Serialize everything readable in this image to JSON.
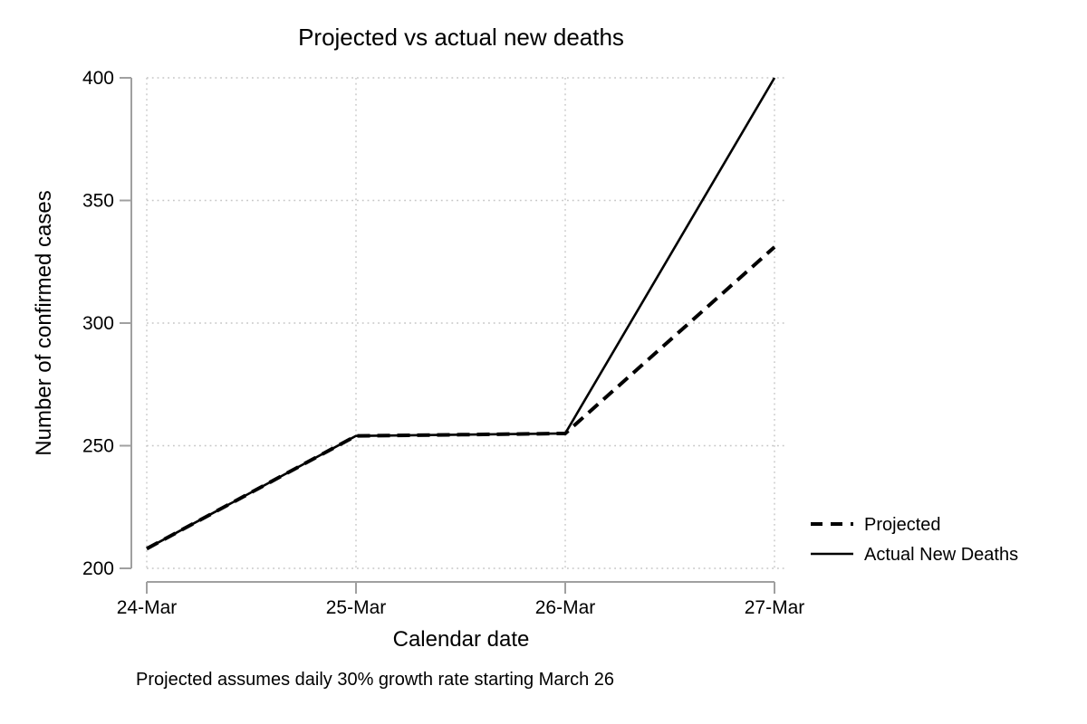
{
  "title": "Projected vs actual new deaths",
  "note": "Projected assumes daily 30% growth rate starting March 26",
  "chart_data": {
    "type": "line",
    "title": "Projected vs actual new deaths",
    "xlabel": "Calendar date",
    "ylabel": "Number of confirmed cases",
    "categories": [
      "24-Mar",
      "25-Mar",
      "26-Mar",
      "27-Mar"
    ],
    "series": [
      {
        "name": "Actual New Deaths",
        "style": "solid",
        "values": [
          208,
          254,
          255,
          400
        ]
      },
      {
        "name": "Projected",
        "style": "dashed",
        "values": [
          208,
          254,
          255,
          331
        ]
      }
    ],
    "ylim": [
      200,
      400
    ],
    "yticks": [
      200,
      250,
      300,
      350,
      400
    ],
    "grid": true,
    "legend_position": "outside-right-bottom",
    "note": "Projected assumes daily 30% growth rate starting March 26"
  },
  "legend": {
    "items": [
      {
        "label": "Projected",
        "style": "dashed"
      },
      {
        "label": "Actual New Deaths",
        "style": "solid"
      }
    ]
  },
  "colors": {
    "line": "#000000",
    "axis": "#a0a0a0",
    "grid": "#c6c6c6",
    "text": "#000000",
    "background": "#ffffff"
  }
}
